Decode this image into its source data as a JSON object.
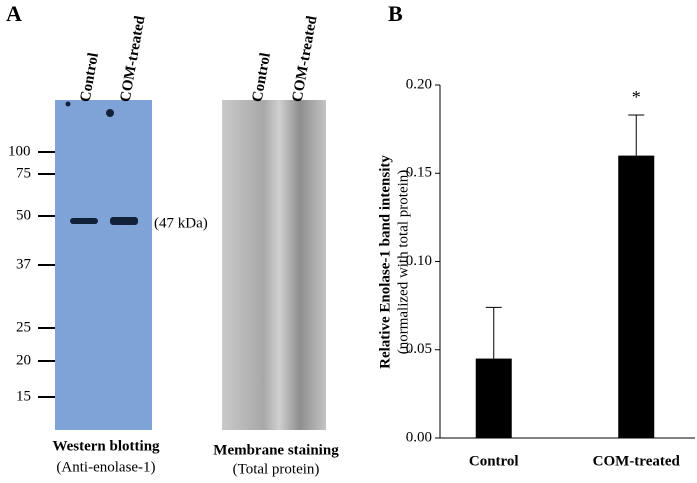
{
  "panel_a": {
    "label": "A",
    "western": {
      "lanes": [
        "Control",
        "COM-treated"
      ],
      "markers": [
        100,
        75,
        50,
        37,
        25,
        20,
        15
      ],
      "band_label": "(47 kDa)",
      "caption": "Western blotting",
      "subcaption": "(Anti-enolase-1)"
    },
    "membrane": {
      "lanes": [
        "Control",
        "COM-treated"
      ],
      "caption": "Membrane staining",
      "subcaption": "(Total protein)"
    }
  },
  "chart_data": {
    "type": "bar",
    "panel_label": "B",
    "ylabel": "Relative Enolase-1 band intensity",
    "ylabel_sub": "(normalized with total protein)",
    "categories": [
      "Control",
      "COM-treated"
    ],
    "values": [
      0.045,
      0.16
    ],
    "errors": [
      0.029,
      0.023
    ],
    "color": "#000000",
    "annotations": [
      null,
      "*"
    ],
    "ylim": [
      0,
      0.2
    ],
    "yticks": [
      {
        "value": 0,
        "label": "0.00"
      },
      {
        "value": 0.05,
        "label": "0.05"
      },
      {
        "value": 0.1,
        "label": "0.10"
      },
      {
        "value": 0.15,
        "label": "0.15"
      },
      {
        "value": 0.2,
        "label": "0.20"
      }
    ]
  }
}
